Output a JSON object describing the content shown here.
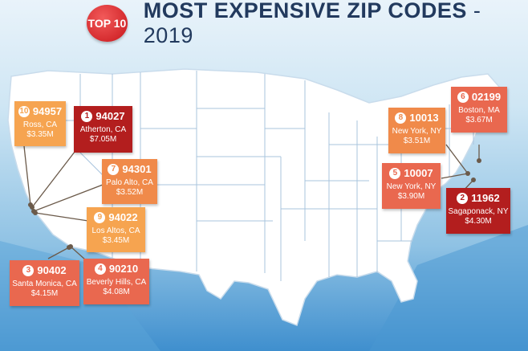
{
  "header": {
    "badge": "TOP 10",
    "title": "MOST EXPENSIVE ZIP CODES",
    "separator": "-",
    "year": "2019"
  },
  "colors": {
    "dark_red": "#b31e1e",
    "coral": "#e9684f",
    "orange": "#f08a4a",
    "light_orange": "#f6a450",
    "map_fill": "#ffffff",
    "state_line": "#9fbcd8"
  },
  "cards": [
    {
      "rank": "10",
      "zip": "94957",
      "city": "Ross, CA",
      "price": "$3.35M"
    },
    {
      "rank": "1",
      "zip": "94027",
      "city": "Atherton, CA",
      "price": "$7.05M"
    },
    {
      "rank": "7",
      "zip": "94301",
      "city": "Palo Alto, CA",
      "price": "$3.52M"
    },
    {
      "rank": "9",
      "zip": "94022",
      "city": "Los Altos, CA",
      "price": "$3.45M"
    },
    {
      "rank": "3",
      "zip": "90402",
      "city": "Santa Monica, CA",
      "price": "$4.15M"
    },
    {
      "rank": "4",
      "zip": "90210",
      "city": "Beverly Hills, CA",
      "price": "$4.08M"
    },
    {
      "rank": "8",
      "zip": "10013",
      "city": "New York, NY",
      "price": "$3.51M"
    },
    {
      "rank": "6",
      "zip": "02199",
      "city": "Boston, MA",
      "price": "$3.67M"
    },
    {
      "rank": "5",
      "zip": "10007",
      "city": "New York, NY",
      "price": "$3.90M"
    },
    {
      "rank": "2",
      "zip": "11962",
      "city": "Sagaponack, NY",
      "price": "$4.30M"
    }
  ]
}
